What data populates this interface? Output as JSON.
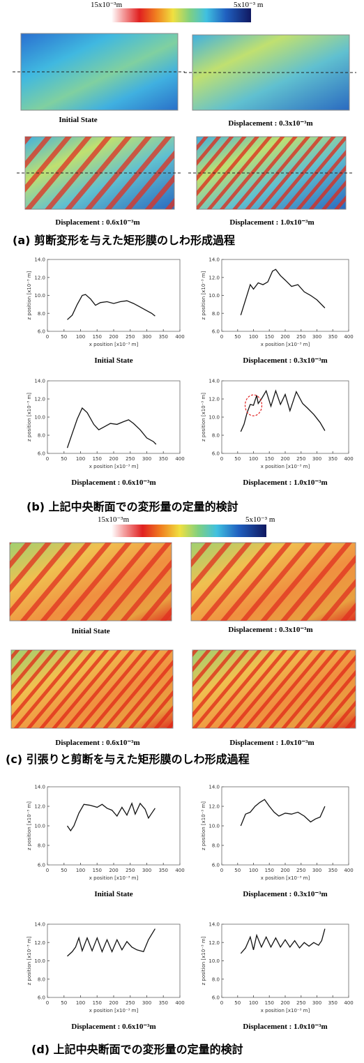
{
  "colorbars": [
    {
      "left_label": "15x10⁻³m",
      "right_label": "5x10⁻³ m"
    },
    {
      "left_label": "15x10⁻³m",
      "right_label": "5x10⁻³ m"
    }
  ],
  "panel_a": {
    "captions": [
      "Initial State",
      "Displacement : 0.3x10⁻³m",
      "Displacement : 0.6x10⁻³m",
      "Displacement : 1.0x10⁻³m"
    ],
    "title": "(a) 剪断変形を与えた矩形膜のしわ形成過程"
  },
  "panel_b": {
    "title": "(b) 上記中央断面での変形量の定量的検討"
  },
  "panel_c": {
    "captions": [
      "Initial State",
      "Displacement : 0.3x10⁻³m",
      "Displacement : 0.6x10⁻³m",
      "Displacement : 1.0x10⁻³m"
    ],
    "title": "(c) 引張りと剪断を与えた矩形膜のしわ形成過程"
  },
  "panel_d": {
    "title": "(d) 上記中央断面での変形量の定量的検討"
  },
  "chart_data": [
    {
      "type": "line",
      "title": "Initial State",
      "x_label": "x position [x10⁻³ m]",
      "y_label": "z position [x10⁻³ m]",
      "x": [
        60,
        75,
        90,
        105,
        115,
        130,
        145,
        160,
        180,
        200,
        220,
        240,
        260,
        280,
        300,
        315,
        325
      ],
      "values": [
        7.3,
        7.8,
        9.0,
        10.0,
        10.1,
        9.6,
        8.9,
        9.2,
        9.3,
        9.1,
        9.3,
        9.4,
        9.1,
        8.7,
        8.3,
        8.0,
        7.7
      ],
      "color": "#111111",
      "xlim": [
        0,
        400
      ],
      "xticks": [
        0,
        50,
        100,
        150,
        200,
        250,
        300,
        350,
        400
      ],
      "ylim": [
        6,
        14
      ],
      "yticks": [
        {
          "value": 6,
          "label": "6.0"
        },
        {
          "value": 8,
          "label": "8.0"
        },
        {
          "value": 10,
          "label": "10.0"
        },
        {
          "value": 12,
          "label": "12.0"
        },
        {
          "value": 14,
          "label": "14.0"
        }
      ]
    },
    {
      "type": "line",
      "title": "Displacement : 0.3x10⁻³m",
      "x_label": "x position [x10⁻³ m]",
      "y_label": "z position [x10⁻³ m]",
      "x": [
        60,
        75,
        90,
        100,
        115,
        130,
        145,
        160,
        170,
        185,
        200,
        220,
        240,
        260,
        280,
        300,
        325
      ],
      "values": [
        7.8,
        9.5,
        11.2,
        10.7,
        11.4,
        11.2,
        11.5,
        12.7,
        12.9,
        12.2,
        11.7,
        11.0,
        11.2,
        10.4,
        10.0,
        9.5,
        8.6
      ],
      "color": "#111111",
      "xlim": [
        0,
        400
      ],
      "xticks": [
        0,
        50,
        100,
        150,
        200,
        250,
        300,
        350,
        400
      ],
      "ylim": [
        6,
        14
      ],
      "yticks": [
        {
          "value": 6,
          "label": "6.0"
        },
        {
          "value": 8,
          "label": "8.0"
        },
        {
          "value": 10,
          "label": "10.0"
        },
        {
          "value": 12,
          "label": "12.0"
        },
        {
          "value": 14,
          "label": "14.0"
        }
      ]
    },
    {
      "type": "line",
      "title": "Displacement : 0.6x10⁻³m",
      "x_label": "x position [x10⁻³ m]",
      "y_label": "z position [x10⁻³ m]",
      "x": [
        60,
        75,
        90,
        105,
        120,
        140,
        155,
        170,
        190,
        210,
        230,
        245,
        260,
        280,
        300,
        320,
        328
      ],
      "values": [
        6.6,
        8.2,
        9.8,
        11.0,
        10.5,
        9.2,
        8.6,
        8.9,
        9.3,
        9.2,
        9.5,
        9.7,
        9.3,
        8.6,
        7.7,
        7.3,
        7.0
      ],
      "color": "#111111",
      "xlim": [
        0,
        400
      ],
      "xticks": [
        0,
        50,
        100,
        150,
        200,
        250,
        300,
        350,
        400
      ],
      "ylim": [
        6,
        14
      ],
      "yticks": [
        {
          "value": 6,
          "label": "6.0"
        },
        {
          "value": 8,
          "label": "8.0"
        },
        {
          "value": 10,
          "label": "10.0"
        },
        {
          "value": 12,
          "label": "12.0"
        },
        {
          "value": 14,
          "label": "14.0"
        }
      ]
    },
    {
      "type": "line",
      "title": "Displacement : 1.0x10⁻³m",
      "x_label": "x position [x10⁻³ m]",
      "y_label": "z position [x10⁻³ m]",
      "x": [
        60,
        70,
        80,
        90,
        100,
        110,
        115,
        125,
        140,
        155,
        170,
        185,
        200,
        215,
        235,
        255,
        270,
        290,
        310,
        325
      ],
      "values": [
        8.4,
        9.2,
        10.5,
        11.4,
        11.3,
        12.4,
        11.5,
        12.0,
        12.9,
        11.2,
        12.9,
        11.4,
        12.5,
        10.7,
        12.8,
        11.5,
        11.0,
        10.3,
        9.4,
        8.5
      ],
      "color": "#111111",
      "xlim": [
        0,
        400
      ],
      "xticks": [
        0,
        50,
        100,
        150,
        200,
        250,
        300,
        350,
        400
      ],
      "ylim": [
        6,
        14
      ],
      "yticks": [
        {
          "value": 6,
          "label": "6.0"
        },
        {
          "value": 8,
          "label": "8.0"
        },
        {
          "value": 10,
          "label": "10.0"
        },
        {
          "value": 12,
          "label": "12.0"
        },
        {
          "value": 14,
          "label": "14.0"
        }
      ]
    },
    {
      "type": "line",
      "title": "Initial State",
      "x_label": "x position [x10⁻³ m]",
      "y_label": "z position [x10⁻³ m]",
      "x": [
        60,
        70,
        80,
        95,
        110,
        130,
        150,
        165,
        180,
        195,
        210,
        225,
        240,
        255,
        265,
        280,
        295,
        305,
        315,
        325
      ],
      "values": [
        10.0,
        9.5,
        10.0,
        11.3,
        12.2,
        12.1,
        11.9,
        12.2,
        11.8,
        11.6,
        11.0,
        11.9,
        11.1,
        12.3,
        11.2,
        12.3,
        11.7,
        10.8,
        11.3,
        11.8
      ],
      "color": "#111111",
      "xlim": [
        0,
        400
      ],
      "xticks": [
        0,
        50,
        100,
        150,
        200,
        250,
        300,
        350,
        400
      ],
      "ylim": [
        6,
        14
      ],
      "yticks": [
        {
          "value": 6,
          "label": "6.0"
        },
        {
          "value": 8,
          "label": "8.0"
        },
        {
          "value": 10,
          "label": "10.0"
        },
        {
          "value": 12,
          "label": "12.0"
        },
        {
          "value": 14,
          "label": "14.0"
        }
      ]
    },
    {
      "type": "line",
      "title": "Displacement : 0.3x10⁻³m",
      "x_label": "x position [x10⁻³ m]",
      "y_label": "z position [x10⁻³ m]",
      "x": [
        60,
        75,
        90,
        105,
        120,
        135,
        150,
        165,
        180,
        200,
        220,
        240,
        260,
        280,
        295,
        310,
        325
      ],
      "values": [
        10.0,
        11.2,
        11.4,
        12.0,
        12.4,
        12.7,
        12.0,
        11.4,
        11.0,
        11.3,
        11.2,
        11.4,
        11.0,
        10.4,
        10.7,
        10.9,
        12.0
      ],
      "color": "#111111",
      "xlim": [
        0,
        400
      ],
      "xticks": [
        0,
        50,
        100,
        150,
        200,
        250,
        300,
        350,
        400
      ],
      "ylim": [
        6,
        14
      ],
      "yticks": [
        {
          "value": 6,
          "label": "6.0"
        },
        {
          "value": 8,
          "label": "8.0"
        },
        {
          "value": 10,
          "label": "10.0"
        },
        {
          "value": 12,
          "label": "12.0"
        },
        {
          "value": 14,
          "label": "14.0"
        }
      ]
    },
    {
      "type": "line",
      "title": "Displacement : 0.6x10⁻³m",
      "x_label": "x position [x10⁻³ m]",
      "y_label": "z position [x10⁻³ m]",
      "x": [
        60,
        75,
        85,
        95,
        105,
        120,
        135,
        150,
        165,
        180,
        195,
        210,
        225,
        240,
        255,
        270,
        290,
        305,
        325
      ],
      "values": [
        10.5,
        11.0,
        11.5,
        12.5,
        11.1,
        12.5,
        11.1,
        12.5,
        11.0,
        12.3,
        11.0,
        12.3,
        11.2,
        12.1,
        11.5,
        11.2,
        11.0,
        12.3,
        13.5
      ],
      "color": "#111111",
      "xlim": [
        0,
        400
      ],
      "xticks": [
        0,
        50,
        100,
        150,
        200,
        250,
        300,
        350,
        400
      ],
      "ylim": [
        6,
        14
      ],
      "yticks": [
        {
          "value": 6,
          "label": "6.0"
        },
        {
          "value": 8,
          "label": "8.0"
        },
        {
          "value": 10,
          "label": "10.0"
        },
        {
          "value": 12,
          "label": "12.0"
        },
        {
          "value": 14,
          "label": "14.0"
        }
      ]
    },
    {
      "type": "line",
      "title": "Displacement : 1.0x10⁻³m",
      "x_label": "x position [x10⁻³ m]",
      "y_label": "z position [x10⁻³ m]",
      "x": [
        60,
        75,
        90,
        100,
        110,
        125,
        140,
        155,
        170,
        185,
        200,
        215,
        230,
        245,
        260,
        275,
        290,
        305,
        315,
        325
      ],
      "values": [
        10.8,
        11.4,
        12.6,
        11.2,
        12.8,
        11.5,
        12.6,
        11.5,
        12.5,
        11.5,
        12.3,
        11.5,
        12.2,
        11.4,
        12.0,
        11.6,
        12.0,
        11.7,
        12.2,
        13.5
      ],
      "color": "#111111",
      "xlim": [
        0,
        400
      ],
      "xticks": [
        0,
        50,
        100,
        150,
        200,
        250,
        300,
        350,
        400
      ],
      "ylim": [
        6,
        14
      ],
      "yticks": [
        {
          "value": 6,
          "label": "6.0"
        },
        {
          "value": 8,
          "label": "8.0"
        },
        {
          "value": 10,
          "label": "10.0"
        },
        {
          "value": 12,
          "label": "12.0"
        },
        {
          "value": 14,
          "label": "14.0"
        }
      ]
    }
  ]
}
